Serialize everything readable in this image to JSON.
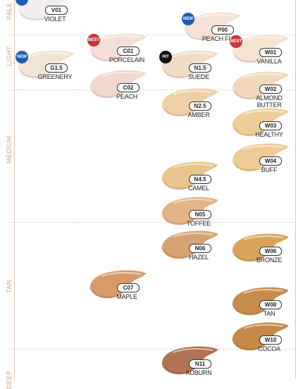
{
  "zones": [
    {
      "label": "PALE",
      "key": "pale"
    },
    {
      "label": "LIGHT",
      "key": "light"
    },
    {
      "label": "MEDIUM",
      "key": "medium"
    },
    {
      "label": "TAN",
      "key": "tan"
    },
    {
      "label": "DEEP",
      "key": "deep"
    }
  ],
  "badge_colors": {
    "NEW": "#1a5fb4",
    "BEST": "#c8373a",
    "HIT": "#111111"
  },
  "shades": [
    {
      "code": "V01",
      "name": "VIOLET",
      "color": "#f3ecf0",
      "badge": "NEW"
    },
    {
      "code": "P00",
      "name": "PEACH FUZZ",
      "color": "#f7e1d6",
      "badge": "NEW"
    },
    {
      "code": "C01",
      "name": "PORCELAIN",
      "color": "#f6dfd6",
      "badge": "BEST"
    },
    {
      "code": "W01",
      "name": "VANILLA",
      "color": "#f5e2cf",
      "badge": "BEST"
    },
    {
      "code": "G1.5",
      "name": "GREENERY",
      "color": "#f0e4d2",
      "badge": "NEW"
    },
    {
      "code": "N1.5",
      "name": "SUEDE",
      "color": "#f2dcc6",
      "badge": "HIT"
    },
    {
      "code": "C02",
      "name": "PEACH",
      "color": "#f2d7cc",
      "badge": ""
    },
    {
      "code": "W02",
      "name": "ALMOND BUTTER",
      "color": "#f2d8bc",
      "badge": ""
    },
    {
      "code": "N2.5",
      "name": "AMBER",
      "color": "#efcfa6",
      "badge": ""
    },
    {
      "code": "W03",
      "name": "HEALTHY",
      "color": "#eecd9b",
      "badge": ""
    },
    {
      "code": "W04",
      "name": "BUFF",
      "color": "#eecb96",
      "badge": ""
    },
    {
      "code": "N4.5",
      "name": "CAMEL",
      "color": "#e9c48c",
      "badge": ""
    },
    {
      "code": "N05",
      "name": "TOFFEE",
      "color": "#e2b486",
      "badge": ""
    },
    {
      "code": "N06",
      "name": "HAZEL",
      "color": "#d7a273",
      "badge": ""
    },
    {
      "code": "W06",
      "name": "BRONZE",
      "color": "#d9a45a",
      "badge": ""
    },
    {
      "code": "C07",
      "name": "MAPLE",
      "color": "#d99a69",
      "badge": ""
    },
    {
      "code": "W08",
      "name": "TAN",
      "color": "#c78b4e",
      "badge": ""
    },
    {
      "code": "W10",
      "name": "COCOA",
      "color": "#c58948",
      "badge": ""
    },
    {
      "code": "N11",
      "name": "AUBURN",
      "color": "#b07455",
      "badge": ""
    }
  ]
}
